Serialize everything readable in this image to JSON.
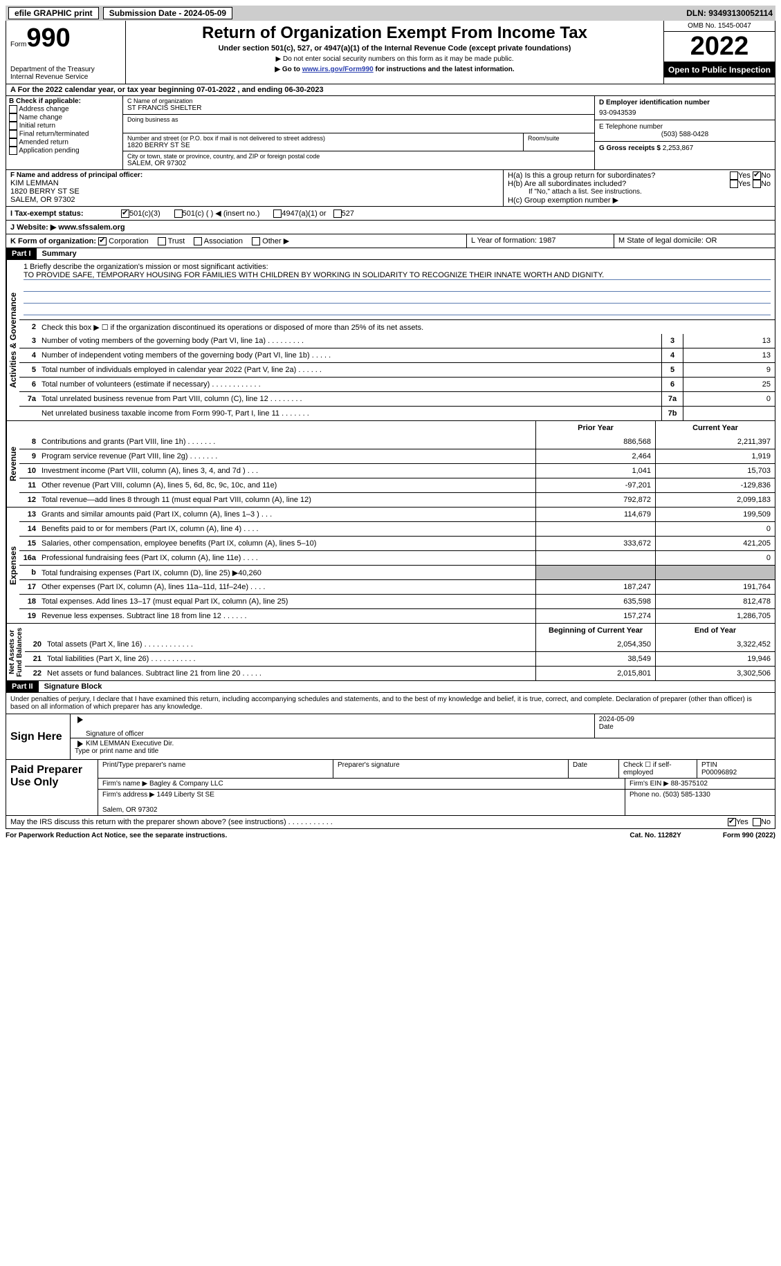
{
  "topbar": {
    "efile": "efile GRAPHIC print",
    "submission": "Submission Date - 2024-05-09",
    "dln": "DLN: 93493130052114"
  },
  "header": {
    "form_label": "Form",
    "form_num": "990",
    "dept": "Department of the Treasury\nInternal Revenue Service",
    "title": "Return of Organization Exempt From Income Tax",
    "sub": "Under section 501(c), 527, or 4947(a)(1) of the Internal Revenue Code (except private foundations)",
    "note1": "▶ Do not enter social security numbers on this form as it may be made public.",
    "note2_pre": "▶ Go to ",
    "note2_link": "www.irs.gov/Form990",
    "note2_post": " for instructions and the latest information.",
    "omb": "OMB No. 1545-0047",
    "year": "2022",
    "open": "Open to Public Inspection"
  },
  "row_a": "A For the 2022 calendar year, or tax year beginning 07-01-2022    , and ending 06-30-2023",
  "b": {
    "label": "B Check if applicable:",
    "opts": [
      "Address change",
      "Name change",
      "Initial return",
      "Final return/terminated",
      "Amended return",
      "Application pending"
    ]
  },
  "c": {
    "name_lbl": "C Name of organization",
    "name": "ST FRANCIS SHELTER",
    "dba_lbl": "Doing business as",
    "addr_lbl": "Number and street (or P.O. box if mail is not delivered to street address)",
    "room_lbl": "Room/suite",
    "addr": "1820 BERRY ST SE",
    "city_lbl": "City or town, state or province, country, and ZIP or foreign postal code",
    "city": "SALEM, OR  97302"
  },
  "d": {
    "ein_lbl": "D Employer identification number",
    "ein": "93-0943539",
    "tel_lbl": "E Telephone number",
    "tel": "(503) 588-0428",
    "gross_lbl": "G Gross receipts $",
    "gross": "2,253,867"
  },
  "f": {
    "lbl": "F Name and address of principal officer:",
    "name": "KIM LEMMAN",
    "addr1": "1820 BERRY ST SE",
    "addr2": "SALEM, OR  97302"
  },
  "h": {
    "a": "H(a)  Is this a group return for subordinates?",
    "b": "H(b)  Are all subordinates included?",
    "b_note": "If \"No,\" attach a list. See instructions.",
    "c": "H(c)  Group exemption number ▶",
    "yes": "Yes",
    "no": "No"
  },
  "i": {
    "lbl": "I    Tax-exempt status:",
    "o1": "501(c)(3)",
    "o2": "501(c) (  ) ◀ (insert no.)",
    "o3": "4947(a)(1) or",
    "o4": "527"
  },
  "j": {
    "lbl": "J   Website: ▶",
    "val": " www.sfssalem.org"
  },
  "k": {
    "lbl": "K Form of organization:",
    "o1": "Corporation",
    "o2": "Trust",
    "o3": "Association",
    "o4": "Other ▶",
    "l": "L Year of formation: 1987",
    "m": "M State of legal domicile: OR"
  },
  "parts": {
    "p1": "Part I",
    "p1t": "Summary",
    "p2": "Part II",
    "p2t": "Signature Block"
  },
  "mission_lbl": "1   Briefly describe the organization's mission or most significant activities:",
  "mission": "TO PROVIDE SAFE, TEMPORARY HOUSING FOR FAMILIES WITH CHILDREN BY WORKING IN SOLIDARITY TO RECOGNIZE THEIR INNATE WORTH AND DIGNITY.",
  "line2": "Check this box ▶ ☐ if the organization discontinued its operations or disposed of more than 25% of its net assets.",
  "govlines": [
    {
      "n": "3",
      "d": "Number of voting members of the governing body (Part VI, line 1a)   .    .    .    .    .    .    .    .    .",
      "b": "3",
      "v": "13"
    },
    {
      "n": "4",
      "d": "Number of independent voting members of the governing body (Part VI, line 1b)   .    .    .    .    .",
      "b": "4",
      "v": "13"
    },
    {
      "n": "5",
      "d": "Total number of individuals employed in calendar year 2022 (Part V, line 2a)   .    .    .    .    .    .",
      "b": "5",
      "v": "9"
    },
    {
      "n": "6",
      "d": "Total number of volunteers (estimate if necessary)    .    .    .    .    .    .    .    .    .    .    .    .",
      "b": "6",
      "v": "25"
    },
    {
      "n": "7a",
      "d": "Total unrelated business revenue from Part VIII, column (C), line 12   .    .    .    .    .    .    .    .",
      "b": "7a",
      "v": "0"
    },
    {
      "n": "",
      "d": "Net unrelated business taxable income from Form 990-T, Part I, line 11   .    .    .    .    .    .    .",
      "b": "7b",
      "v": ""
    }
  ],
  "pyhdr": {
    "p": "Prior Year",
    "c": "Current Year"
  },
  "revlines": [
    {
      "n": "8",
      "d": "Contributions and grants (Part VIII, line 1h)   .    .    .    .    .    .    .",
      "p": "886,568",
      "c": "2,211,397"
    },
    {
      "n": "9",
      "d": "Program service revenue (Part VIII, line 2g)   .    .    .    .    .    .    .",
      "p": "2,464",
      "c": "1,919"
    },
    {
      "n": "10",
      "d": "Investment income (Part VIII, column (A), lines 3, 4, and 7d )   .    .    .",
      "p": "1,041",
      "c": "15,703"
    },
    {
      "n": "11",
      "d": "Other revenue (Part VIII, column (A), lines 5, 6d, 8c, 9c, 10c, and 11e)",
      "p": "-97,201",
      "c": "-129,836"
    },
    {
      "n": "12",
      "d": "Total revenue—add lines 8 through 11 (must equal Part VIII, column (A), line 12)",
      "p": "792,872",
      "c": "2,099,183"
    }
  ],
  "explines": [
    {
      "n": "13",
      "d": "Grants and similar amounts paid (Part IX, column (A), lines 1–3 )   .    .    .",
      "p": "114,679",
      "c": "199,509"
    },
    {
      "n": "14",
      "d": "Benefits paid to or for members (Part IX, column (A), line 4)   .    .    .    .",
      "p": "",
      "c": "0"
    },
    {
      "n": "15",
      "d": "Salaries, other compensation, employee benefits (Part IX, column (A), lines 5–10)",
      "p": "333,672",
      "c": "421,205"
    },
    {
      "n": "16a",
      "d": "Professional fundraising fees (Part IX, column (A), line 11e)   .    .    .    .",
      "p": "",
      "c": "0"
    },
    {
      "n": "b",
      "d": "Total fundraising expenses (Part IX, column (D), line 25) ▶40,260",
      "p": "shade",
      "c": "shade"
    },
    {
      "n": "17",
      "d": "Other expenses (Part IX, column (A), lines 11a–11d, 11f–24e)   .    .    .    .",
      "p": "187,247",
      "c": "191,764"
    },
    {
      "n": "18",
      "d": "Total expenses. Add lines 13–17 (must equal Part IX, column (A), line 25)",
      "p": "635,598",
      "c": "812,478"
    },
    {
      "n": "19",
      "d": "Revenue less expenses. Subtract line 18 from line 12   .    .    .    .    .    .",
      "p": "157,274",
      "c": "1,286,705"
    }
  ],
  "nahdr": {
    "p": "Beginning of Current Year",
    "c": "End of Year"
  },
  "nalines": [
    {
      "n": "20",
      "d": "Total assets (Part X, line 16)   .    .    .    .    .    .    .    .    .    .    .    .",
      "p": "2,054,350",
      "c": "3,322,452"
    },
    {
      "n": "21",
      "d": "Total liabilities (Part X, line 26)   .    .    .    .    .    .    .    .    .    .    .",
      "p": "38,549",
      "c": "19,946"
    },
    {
      "n": "22",
      "d": "Net assets or fund balances. Subtract line 21 from line 20   .    .    .    .    .",
      "p": "2,015,801",
      "c": "3,302,506"
    }
  ],
  "vert": {
    "gov": "Activities & Governance",
    "rev": "Revenue",
    "exp": "Expenses",
    "na": "Net Assets or\nFund Balances"
  },
  "decl": "Under penalties of perjury, I declare that I have examined this return, including accompanying schedules and statements, and to the best of my knowledge and belief, it is true, correct, and complete. Declaration of preparer (other than officer) is based on all information of which preparer has any knowledge.",
  "sign": {
    "here": "Sign Here",
    "sig_officer": "Signature of officer",
    "date": "Date",
    "date_val": "2024-05-09",
    "name_title": "KIM LEMMAN  Executive Dir.",
    "type_name": "Type or print name and title"
  },
  "paid": {
    "lbl": "Paid Preparer Use Only",
    "r1a": "Print/Type preparer's name",
    "r1b": "Preparer's signature",
    "r1c": "Date",
    "r1d": "Check ☐ if self-employed",
    "r1e": "PTIN",
    "ptin": "P00096892",
    "firm_lbl": "Firm's name    ▶",
    "firm": "Bagley & Company LLC",
    "ein_lbl": "Firm's EIN ▶",
    "ein": "88-3575102",
    "addr_lbl": "Firm's address ▶",
    "addr": "1449 Liberty St SE\n\nSalem, OR  97302",
    "phone_lbl": "Phone no.",
    "phone": "(503) 585-1330"
  },
  "discuss": "May the IRS discuss this return with the preparer shown above? (see instructions)   .    .    .    .    .    .    .    .    .    .    .",
  "footer": {
    "l": "For Paperwork Reduction Act Notice, see the separate instructions.",
    "m": "Cat. No. 11282Y",
    "r": "Form 990 (2022)"
  }
}
